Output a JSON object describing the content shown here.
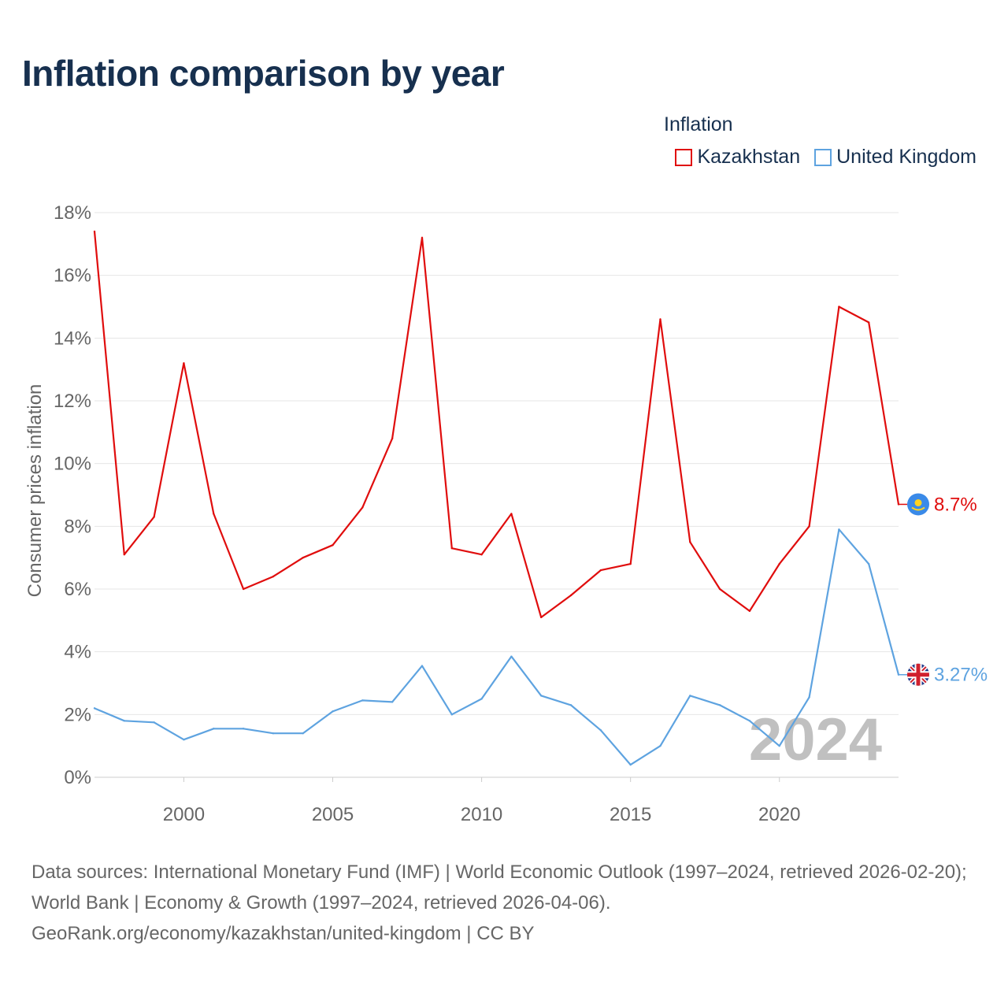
{
  "title": "Inflation comparison by year",
  "legend": {
    "title": "Inflation",
    "items": [
      {
        "label": "Kazakhstan",
        "color": "#e00d0d"
      },
      {
        "label": "United Kingdom",
        "color": "#5ea3e0"
      }
    ]
  },
  "chart_data": {
    "type": "line",
    "title": "Inflation comparison by year",
    "xlabel": "",
    "ylabel": "Consumer prices inflation",
    "x": [
      1997,
      1998,
      1999,
      2000,
      2001,
      2002,
      2003,
      2004,
      2005,
      2006,
      2007,
      2008,
      2009,
      2010,
      2011,
      2012,
      2013,
      2014,
      2015,
      2016,
      2017,
      2018,
      2019,
      2020,
      2021,
      2022,
      2023,
      2024
    ],
    "xlim": [
      1997,
      2024
    ],
    "ylim": [
      0,
      18
    ],
    "x_ticks": [
      2000,
      2005,
      2010,
      2015,
      2020
    ],
    "y_ticks": [
      0,
      2,
      4,
      6,
      8,
      10,
      12,
      14,
      16,
      18
    ],
    "y_tick_labels": [
      "0%",
      "2%",
      "4%",
      "6%",
      "8%",
      "10%",
      "12%",
      "14%",
      "16%",
      "18%"
    ],
    "grid": true,
    "legend_position": "top-right",
    "watermark_year": "2024",
    "series": [
      {
        "name": "Kazakhstan",
        "color": "#e00d0d",
        "icon": "kazakhstan-flag-icon",
        "end_label": "8.7%",
        "values": [
          17.4,
          7.1,
          8.3,
          13.2,
          8.4,
          6.0,
          6.4,
          7.0,
          7.4,
          8.6,
          10.8,
          17.2,
          7.3,
          7.1,
          8.4,
          5.1,
          5.8,
          6.6,
          6.8,
          14.6,
          7.5,
          6.0,
          5.3,
          6.8,
          8.0,
          15.0,
          14.5,
          8.7
        ]
      },
      {
        "name": "United Kingdom",
        "color": "#5ea3e0",
        "icon": "uk-flag-icon",
        "end_label": "3.27%",
        "values": [
          2.2,
          1.8,
          1.75,
          1.2,
          1.55,
          1.55,
          1.4,
          1.4,
          2.1,
          2.45,
          2.4,
          3.55,
          2.0,
          2.5,
          3.85,
          2.6,
          2.3,
          1.5,
          0.4,
          1.0,
          2.6,
          2.3,
          1.8,
          1.0,
          2.55,
          7.9,
          6.8,
          3.27
        ]
      }
    ]
  },
  "footer": {
    "sources": "Data sources: International Monetary Fund (IMF) | World Economic Outlook (1997–2024, retrieved 2026-02-20); World Bank | Economy & Growth (1997–2024, retrieved 2026-04-06).",
    "attribution": "GeoRank.org/economy/kazakhstan/united-kingdom | CC BY"
  }
}
